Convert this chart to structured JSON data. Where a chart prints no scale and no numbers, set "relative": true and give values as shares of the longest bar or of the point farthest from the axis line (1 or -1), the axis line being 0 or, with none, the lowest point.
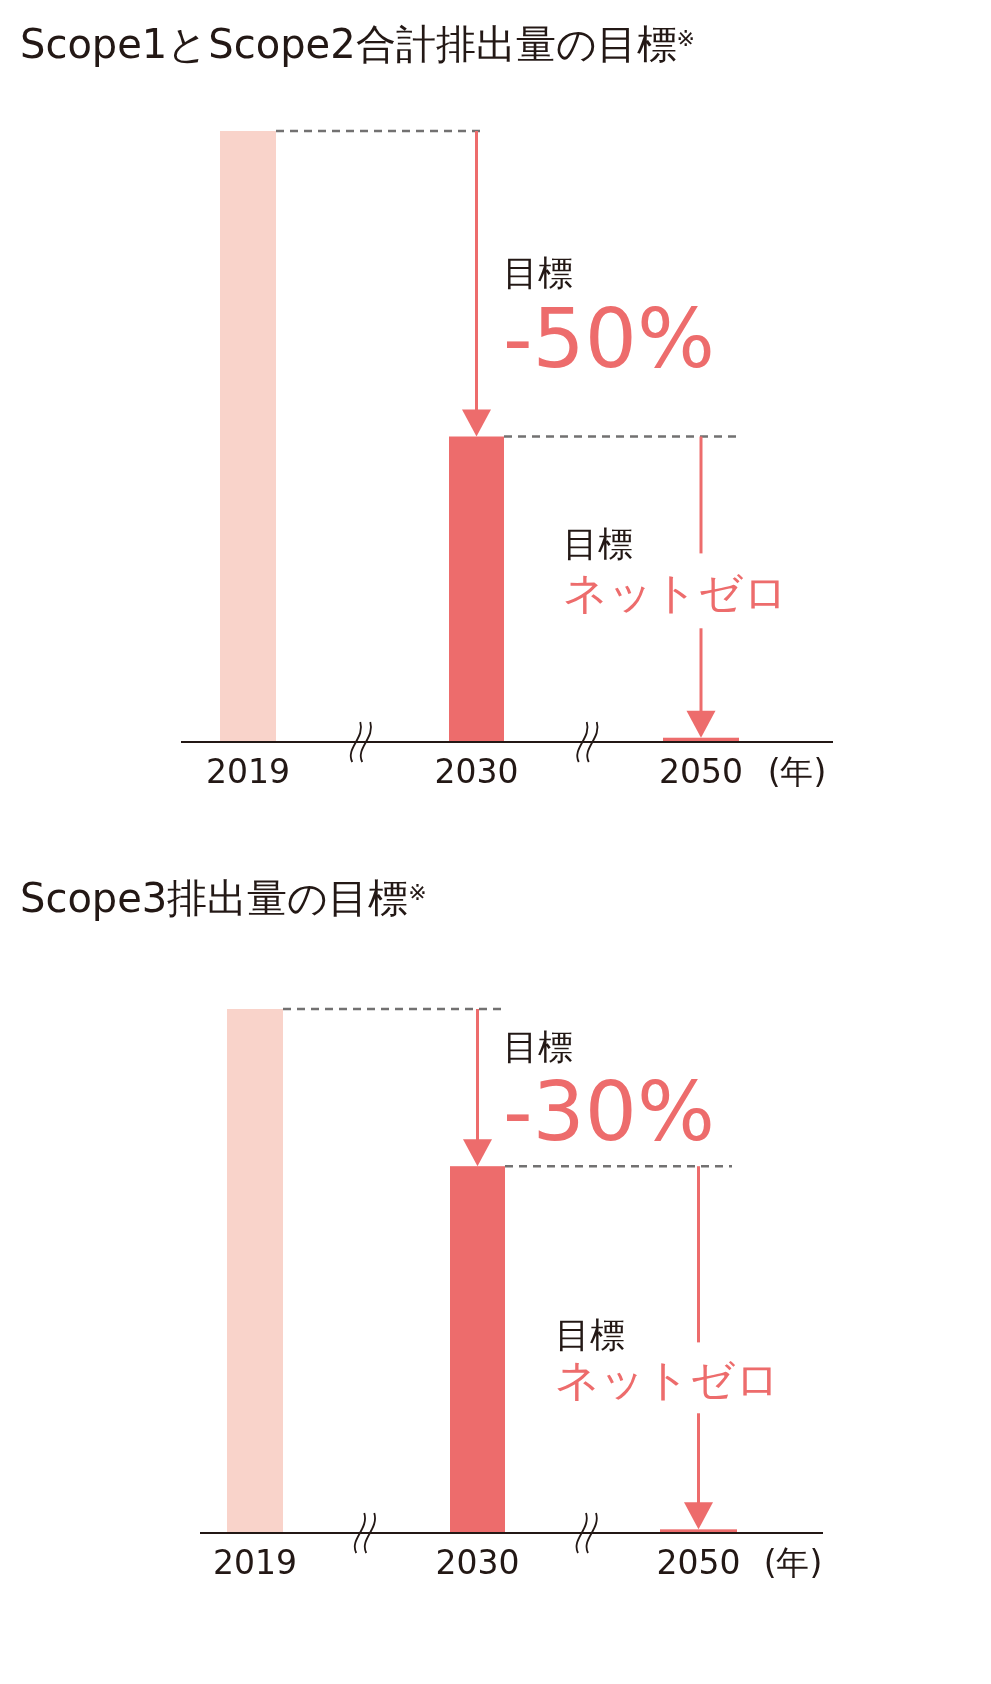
{
  "chart_data": [
    {
      "type": "bar",
      "title": "Scope1とScope2合計排出量の目標$^{※}$",
      "categories": [
        "2019",
        "2030",
        "2050"
      ],
      "values": [
        1,
        0.5,
        0.007
      ],
      "colors": [
        "#f9d3ca",
        "#ed6c6c",
        "#ed6c6c"
      ],
      "relative": true,
      "xlabel": "(年)",
      "annotations": [
        "目標",
        "-50%",
        "目標",
        "ネットゼロ"
      ],
      "ref_lines": [
        {
          "axis": "y",
          "value": 1,
          "color": "#727171",
          "line_style": "dashed"
        },
        {
          "axis": "y",
          "value": 0.5,
          "color": "#727171",
          "line_style": "dashed"
        }
      ]
    },
    {
      "type": "bar",
      "title": "Scope3排出量の目標$^{※}$",
      "categories": [
        "2019",
        "2030",
        "2050"
      ],
      "values": [
        1,
        0.7,
        0.007
      ],
      "colors": [
        "#f9d3ca",
        "#ed6c6c",
        "#ed6c6c"
      ],
      "relative": true,
      "xlabel": "(年)",
      "annotations": [
        "目標",
        "-30%",
        "目標",
        "ネットゼロ"
      ],
      "ref_lines": [
        {
          "axis": "y",
          "value": 1,
          "color": "#727171",
          "line_style": "dashed"
        },
        {
          "axis": "y",
          "value": 0.7,
          "color": "#727171",
          "line_style": "dashed"
        }
      ]
    }
  ]
}
